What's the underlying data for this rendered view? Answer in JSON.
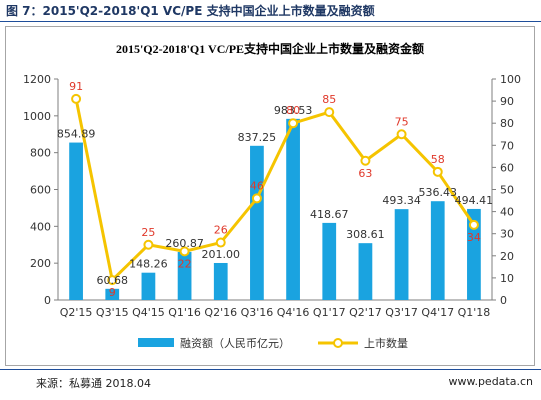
{
  "figure_caption": "图 7：2015'Q2-2018'Q1 VC/PE 支持中国企业上市数量及融资额",
  "source_text": "来源：私募通  2018.04",
  "website_text": "www.pedata.cn",
  "colors": {
    "bar": "#1aa3e0",
    "line": "#f5c400",
    "point_fill": "#ffffff",
    "line_label": "#e0392b",
    "bar_label": "#333333",
    "header": "#1f3864"
  },
  "chart_data": {
    "type": "bar",
    "title": "2015'Q2-2018'Q1 VC/PE支持中国企业上市数量及融资金额",
    "categories": [
      "Q2'15",
      "Q3'15",
      "Q4'15",
      "Q1'16",
      "Q2'16",
      "Q3'16",
      "Q4'16",
      "Q1'17",
      "Q2'17",
      "Q3'17",
      "Q4'17",
      "Q1'18"
    ],
    "bar_labels": [
      "854.89",
      "60.68",
      "148.26",
      "260.87",
      "201.00",
      "837.25",
      "983.53",
      "418.67",
      "308.61",
      "493.34",
      "536.43",
      "494.41"
    ],
    "line_labels": [
      "91",
      "9",
      "25",
      "22",
      "26",
      "46",
      "80",
      "85",
      "63",
      "75",
      "58",
      "34"
    ],
    "series": [
      {
        "name": "融资额（人民币亿元）",
        "type": "bar",
        "axis": "left",
        "values": [
          854.89,
          60.68,
          148.26,
          260.87,
          201.0,
          837.25,
          983.53,
          418.67,
          308.61,
          493.34,
          536.43,
          494.41
        ]
      },
      {
        "name": "上市数量",
        "type": "line",
        "axis": "right",
        "values": [
          91,
          9,
          25,
          22,
          26,
          46,
          80,
          85,
          63,
          75,
          58,
          34
        ]
      }
    ],
    "y_left": {
      "min": 0,
      "max": 1200,
      "ticks": [
        "0",
        "200",
        "400",
        "600",
        "800",
        "1000",
        "1200"
      ]
    },
    "y_right": {
      "min": 0,
      "max": 100,
      "ticks": [
        "0",
        "10",
        "20",
        "30",
        "40",
        "50",
        "60",
        "70",
        "80",
        "90",
        "100"
      ]
    },
    "grid": false,
    "legend_position": "bottom"
  }
}
